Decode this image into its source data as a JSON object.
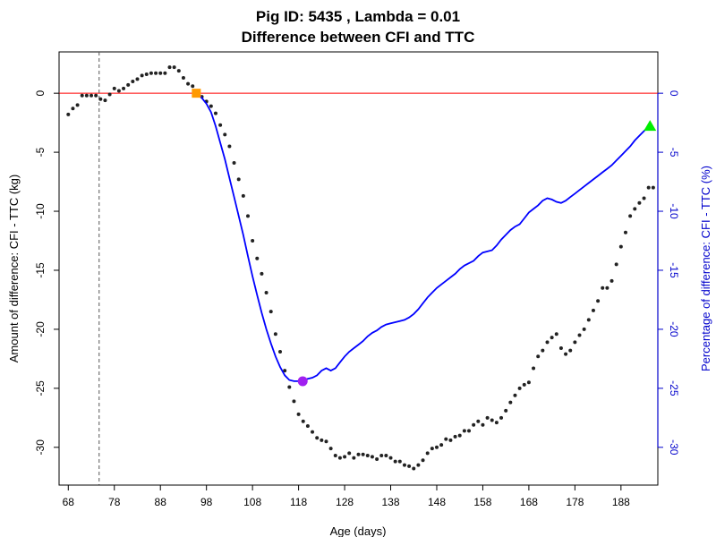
{
  "chart_data": {
    "type": "line",
    "title": "Pig ID: 5435 , Lambda = 0.01",
    "subtitle": "Difference between CFI and TTC",
    "xlabel": "Age (days)",
    "ylabel": "Amount of difference: CFI - TTC (kg)",
    "y2label": "Percentage of difference: CFI - TTC (%)",
    "xlim": [
      66,
      196
    ],
    "ylim": [
      -33.2,
      3.5
    ],
    "y2lim": [
      -33.2,
      3.5
    ],
    "x_ticks": [
      68,
      78,
      88,
      98,
      108,
      118,
      128,
      138,
      148,
      158,
      168,
      178,
      188
    ],
    "y_ticks": [
      0,
      -5,
      -10,
      -15,
      -20,
      -25,
      -30
    ],
    "y2_ticks": [
      0,
      -5,
      -10,
      -15,
      -20,
      -25,
      -30
    ],
    "grid": false,
    "colors": {
      "points": "#222222",
      "percentage_line": "#0000ff",
      "right_axis": "#0000cc",
      "zero_line": "#ff0000",
      "vline": "#555555",
      "square_marker": "#ff9900",
      "circle_marker": "#a020f0",
      "triangle_marker": "#00ee00"
    },
    "reference_lines": {
      "horizontal_y": 0,
      "vertical_x": 74.7
    },
    "series": [
      {
        "type": "scatter",
        "x": [
          68,
          69,
          70,
          71,
          72,
          73,
          74,
          75,
          76,
          77,
          78,
          79,
          80,
          81,
          82,
          83,
          84,
          85,
          86,
          87,
          88,
          89,
          90,
          91,
          92,
          93,
          94,
          95,
          96,
          97,
          98,
          99,
          100,
          101,
          102,
          103,
          104,
          105,
          106,
          107,
          108,
          109,
          110,
          111,
          112,
          113,
          114,
          115,
          116,
          117,
          118,
          119,
          120,
          121,
          122,
          123,
          124,
          125,
          126,
          127,
          128,
          129,
          130,
          131,
          132,
          133,
          134,
          135,
          136,
          137,
          138,
          139,
          140,
          141,
          142,
          143,
          144,
          145,
          146,
          147,
          148,
          149,
          150,
          151,
          152,
          153,
          154,
          155,
          156,
          157,
          158,
          159,
          160,
          161,
          162,
          163,
          164,
          165,
          166,
          167,
          168,
          169,
          170,
          171,
          172,
          173,
          174,
          175,
          176,
          177,
          178,
          179,
          180,
          181,
          182,
          183,
          184,
          185,
          186,
          187,
          188,
          189,
          190,
          191,
          192,
          193,
          194,
          195
        ],
        "y": [
          -1.8,
          -1.3,
          -1.0,
          -0.2,
          -0.2,
          -0.2,
          -0.2,
          -0.5,
          -0.6,
          -0.1,
          0.4,
          0.2,
          0.4,
          0.7,
          1.0,
          1.2,
          1.5,
          1.6,
          1.7,
          1.7,
          1.7,
          1.7,
          2.2,
          2.2,
          1.9,
          1.3,
          0.8,
          0.6,
          0.0,
          -0.3,
          -0.7,
          -1.1,
          -1.7,
          -2.7,
          -3.5,
          -4.5,
          -5.9,
          -7.3,
          -8.7,
          -10.4,
          -12.5,
          -14.0,
          -15.3,
          -16.9,
          -18.5,
          -20.4,
          -21.9,
          -23.5,
          -24.9,
          -26.1,
          -27.2,
          -27.8,
          -28.2,
          -28.7,
          -29.2,
          -29.4,
          -29.5,
          -30.1,
          -30.7,
          -30.9,
          -30.8,
          -30.5,
          -30.9,
          -30.6,
          -30.6,
          -30.7,
          -30.8,
          -31.0,
          -30.7,
          -30.7,
          -30.9,
          -31.2,
          -31.2,
          -31.5,
          -31.6,
          -31.8,
          -31.5,
          -31.1,
          -30.5,
          -30.1,
          -30.0,
          -29.8,
          -29.3,
          -29.4,
          -29.1,
          -29.0,
          -28.6,
          -28.6,
          -28.1,
          -27.8,
          -28.1,
          -27.5,
          -27.7,
          -27.9,
          -27.5,
          -26.9,
          -26.2,
          -25.6,
          -25.0,
          -24.7,
          -24.5,
          -23.3,
          -22.3,
          -21.8,
          -21.1,
          -20.7,
          -20.4,
          -21.6,
          -22.1,
          -21.8,
          -21.1,
          -20.5,
          -20.0,
          -19.2,
          -18.4,
          -17.6,
          -16.5,
          -16.5,
          -15.9,
          -14.5,
          -13.0,
          -11.8,
          -10.4,
          -9.8,
          -9.3,
          -8.9,
          -8.0,
          -8.0
        ]
      },
      {
        "type": "line",
        "x": [
          96,
          97,
          98,
          99,
          100,
          101,
          102,
          103,
          104,
          105,
          106,
          107,
          108,
          109,
          110,
          111,
          112,
          113,
          114,
          115,
          116,
          117,
          118,
          119,
          120,
          121,
          122,
          123,
          124,
          125,
          126,
          127,
          128,
          129,
          130,
          131,
          132,
          133,
          134,
          135,
          136,
          137,
          138,
          139,
          140,
          141,
          142,
          143,
          144,
          145,
          146,
          147,
          148,
          149,
          150,
          151,
          152,
          153,
          154,
          155,
          156,
          157,
          158,
          159,
          160,
          161,
          162,
          163,
          164,
          165,
          166,
          167,
          168,
          169,
          170,
          171,
          172,
          173,
          174,
          175,
          176,
          177,
          178,
          179,
          180,
          181,
          182,
          183,
          184,
          185,
          186,
          187,
          188,
          189,
          190,
          191,
          192,
          193,
          194
        ],
        "y": [
          0.0,
          -0.4,
          -0.9,
          -1.6,
          -2.8,
          -4.2,
          -5.6,
          -7.2,
          -8.8,
          -10.4,
          -12.0,
          -13.8,
          -15.5,
          -17.1,
          -18.6,
          -20.0,
          -21.2,
          -22.3,
          -23.2,
          -23.9,
          -24.3,
          -24.4,
          -24.4,
          -24.3,
          -24.2,
          -24.1,
          -23.9,
          -23.5,
          -23.3,
          -23.5,
          -23.3,
          -22.8,
          -22.3,
          -21.9,
          -21.6,
          -21.3,
          -21.0,
          -20.6,
          -20.3,
          -20.1,
          -19.8,
          -19.6,
          -19.5,
          -19.4,
          -19.3,
          -19.2,
          -19.0,
          -18.7,
          -18.3,
          -17.8,
          -17.3,
          -16.9,
          -16.5,
          -16.2,
          -15.9,
          -15.6,
          -15.3,
          -14.9,
          -14.6,
          -14.4,
          -14.2,
          -13.8,
          -13.5,
          -13.4,
          -13.3,
          -12.9,
          -12.4,
          -12.0,
          -11.6,
          -11.3,
          -11.1,
          -10.6,
          -10.1,
          -9.8,
          -9.5,
          -9.1,
          -8.9,
          -9.0,
          -9.2,
          -9.3,
          -9.1,
          -8.8,
          -8.5,
          -8.2,
          -7.9,
          -7.6,
          -7.3,
          -7.0,
          -6.7,
          -6.4,
          -6.1,
          -5.7,
          -5.3,
          -4.9,
          -4.5,
          -4.0,
          -3.6,
          -3.2,
          -2.8
        ]
      }
    ],
    "markers": [
      {
        "shape": "square",
        "x": 95.8,
        "y": 0
      },
      {
        "shape": "circle",
        "x": 118.9,
        "y": -24.4
      },
      {
        "shape": "triangle",
        "x": 194.3,
        "y": -2.8
      }
    ]
  }
}
